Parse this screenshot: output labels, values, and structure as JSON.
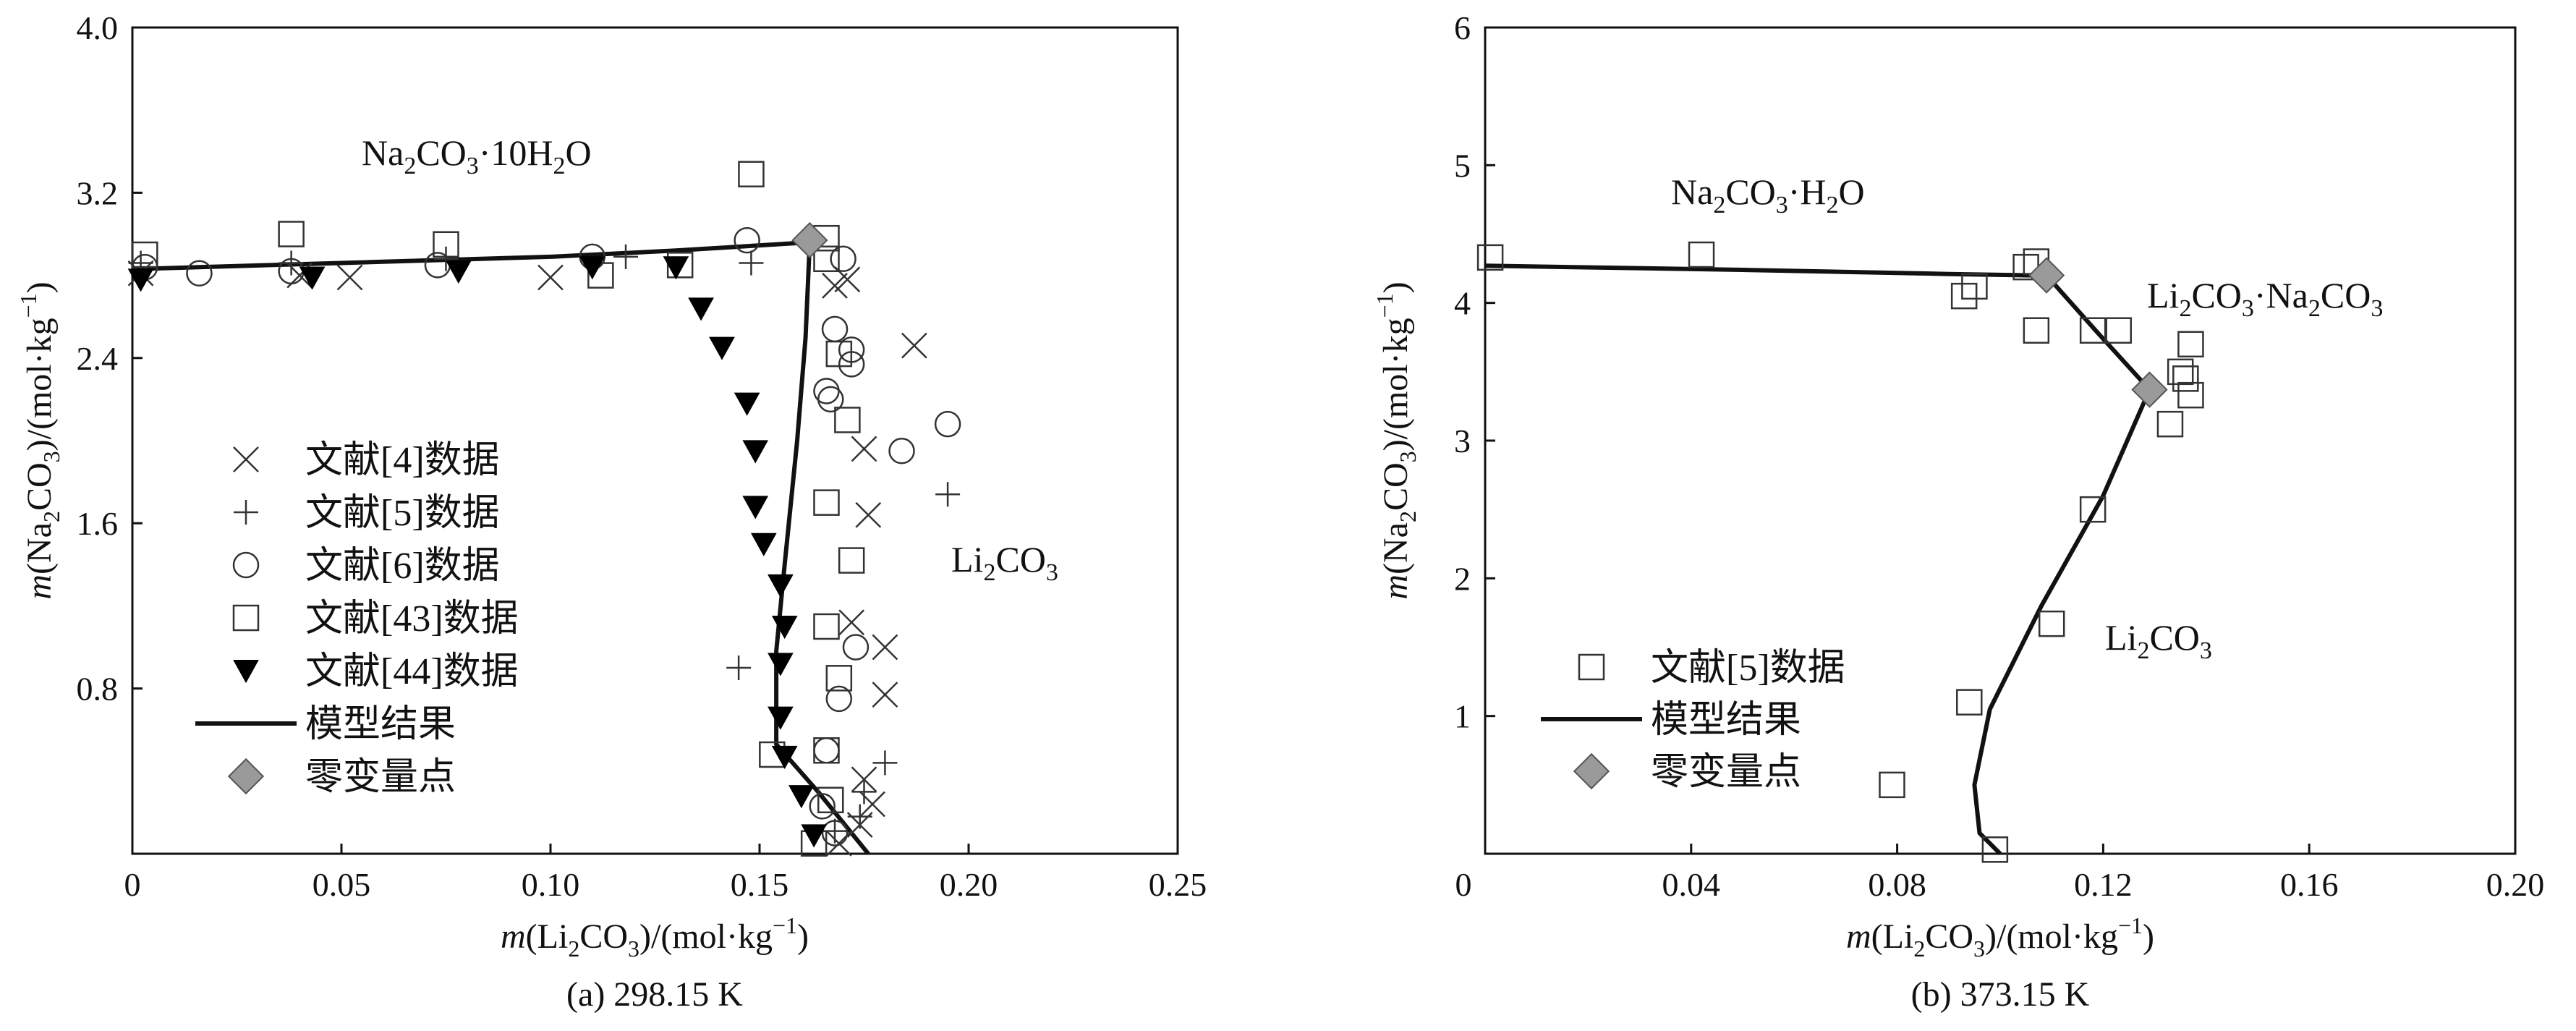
{
  "chart_data": [
    {
      "type": "scatter",
      "panel": "a",
      "caption": "(a) 298.15 K",
      "xlabel": "m(Li2CO3)/(mol·kg-1)",
      "ylabel": "m(Na2CO3)/(mol·kg-1)",
      "xlim": [
        0,
        0.25
      ],
      "ylim": [
        0,
        4.0
      ],
      "xticks": [
        0,
        0.05,
        0.1,
        0.15,
        0.2,
        0.25
      ],
      "xtick_labels": [
        "0",
        "0.05",
        "0.10",
        "0.15",
        "0.20",
        "0.25"
      ],
      "yticks": [
        0.8,
        1.6,
        2.4,
        3.2,
        4.0
      ],
      "ytick_labels": [
        "0.8",
        "1.6",
        "2.4",
        "3.2",
        "4.0"
      ],
      "grid": false,
      "legend_position": "left",
      "region_labels": [
        {
          "text": "Na2CO3·10H2O",
          "x": 0.095,
          "y": 3.34
        },
        {
          "text": "Li2CO3",
          "x": 0.21,
          "y": 1.38
        }
      ],
      "series": [
        {
          "name": "文献[4]数据",
          "marker": "x",
          "points": [
            [
              0.002,
              2.81
            ],
            [
              0.04,
              2.8
            ],
            [
              0.052,
              2.79
            ],
            [
              0.1,
              2.79
            ],
            [
              0.168,
              2.75
            ],
            [
              0.171,
              2.78
            ],
            [
              0.175,
              1.96
            ],
            [
              0.187,
              2.46
            ],
            [
              0.176,
              1.64
            ],
            [
              0.18,
              1.0
            ],
            [
              0.18,
              0.77
            ],
            [
              0.172,
              1.12
            ],
            [
              0.175,
              0.36
            ],
            [
              0.177,
              0.24
            ],
            [
              0.174,
              0.14
            ],
            [
              0.169,
              0.05
            ]
          ]
        },
        {
          "name": "文献[5]数据",
          "marker": "+",
          "points": [
            [
              0.002,
              2.86
            ],
            [
              0.038,
              2.86
            ],
            [
              0.075,
              2.88
            ],
            [
              0.118,
              2.89
            ],
            [
              0.148,
              2.86
            ],
            [
              0.195,
              1.74
            ],
            [
              0.145,
              0.9
            ],
            [
              0.18,
              0.44
            ],
            [
              0.175,
              0.3
            ],
            [
              0.174,
              0.18
            ],
            [
              0.168,
              0.11
            ]
          ]
        },
        {
          "name": "文献[6]数据",
          "marker": "o",
          "points": [
            [
              0.003,
              2.84
            ],
            [
              0.016,
              2.81
            ],
            [
              0.038,
              2.82
            ],
            [
              0.073,
              2.85
            ],
            [
              0.11,
              2.89
            ],
            [
              0.147,
              2.97
            ],
            [
              0.17,
              2.88
            ],
            [
              0.168,
              2.54
            ],
            [
              0.172,
              2.44
            ],
            [
              0.172,
              2.37
            ],
            [
              0.166,
              2.24
            ],
            [
              0.167,
              2.2
            ],
            [
              0.184,
              1.95
            ],
            [
              0.195,
              2.08
            ],
            [
              0.173,
              1.0
            ],
            [
              0.169,
              0.75
            ],
            [
              0.166,
              0.5
            ],
            [
              0.165,
              0.23
            ],
            [
              0.168,
              0.1
            ]
          ]
        },
        {
          "name": "文献[43]数据",
          "marker": "square",
          "points": [
            [
              0.003,
              2.9
            ],
            [
              0.038,
              3.0
            ],
            [
              0.075,
              2.95
            ],
            [
              0.112,
              2.8
            ],
            [
              0.131,
              2.85
            ],
            [
              0.148,
              3.29
            ],
            [
              0.166,
              2.98
            ],
            [
              0.166,
              2.88
            ],
            [
              0.169,
              2.42
            ],
            [
              0.171,
              2.1
            ],
            [
              0.166,
              1.7
            ],
            [
              0.172,
              1.42
            ],
            [
              0.166,
              1.1
            ],
            [
              0.169,
              0.85
            ],
            [
              0.153,
              0.48
            ],
            [
              0.166,
              0.5
            ],
            [
              0.167,
              0.26
            ],
            [
              0.163,
              0.05
            ]
          ]
        },
        {
          "name": "文献[44]数据",
          "marker": "triangle-down",
          "points": [
            [
              0.002,
              2.78
            ],
            [
              0.043,
              2.79
            ],
            [
              0.078,
              2.82
            ],
            [
              0.11,
              2.84
            ],
            [
              0.13,
              2.84
            ],
            [
              0.136,
              2.64
            ],
            [
              0.141,
              2.45
            ],
            [
              0.147,
              2.18
            ],
            [
              0.149,
              1.95
            ],
            [
              0.149,
              1.68
            ],
            [
              0.151,
              1.5
            ],
            [
              0.155,
              1.3
            ],
            [
              0.156,
              1.1
            ],
            [
              0.155,
              0.92
            ],
            [
              0.155,
              0.66
            ],
            [
              0.156,
              0.47
            ],
            [
              0.16,
              0.28
            ],
            [
              0.163,
              0.09
            ]
          ]
        },
        {
          "name": "模型结果",
          "marker": "line",
          "points": [
            [
              0.0,
              2.83
            ],
            [
              0.05,
              2.86
            ],
            [
              0.1,
              2.89
            ],
            [
              0.13,
              2.92
            ],
            [
              0.162,
              2.96
            ],
            [
              0.161,
              2.5
            ],
            [
              0.159,
              2.0
            ],
            [
              0.156,
              1.4
            ],
            [
              0.154,
              0.98
            ],
            [
              0.154,
              0.53
            ],
            [
              0.164,
              0.3
            ],
            [
              0.176,
              0.0
            ]
          ]
        },
        {
          "name": "零变量点",
          "marker": "diamond",
          "points": [
            [
              0.162,
              2.97
            ]
          ]
        }
      ]
    },
    {
      "type": "scatter",
      "panel": "b",
      "caption": "(b) 373.15 K",
      "xlabel": "m(Li2CO3)/(mol·kg-1)",
      "ylabel": "m(Na2CO3)/(mol·kg-1)",
      "xlim": [
        0,
        0.2
      ],
      "ylim": [
        0,
        6
      ],
      "xticks": [
        0.04,
        0.08,
        0.12,
        0.16,
        0.2
      ],
      "xtick_labels": [
        "0.04",
        "0.08",
        "0.12",
        "0.16",
        "0.20"
      ],
      "yticks": [
        0,
        1,
        2,
        3,
        4,
        5,
        6
      ],
      "ytick_labels": [
        "0",
        "1",
        "2",
        "3",
        "4",
        "5",
        "6"
      ],
      "grid": false,
      "legend_position": "bottom-left",
      "region_labels": [
        {
          "text": "Na2CO3·H2O",
          "x": 0.05,
          "y": 4.82
        },
        {
          "text": "Li2CO3·Na2CO3",
          "x": 0.152,
          "y": 4.02
        },
        {
          "text": "Li2CO3",
          "x": 0.123,
          "y": 1.78
        }
      ],
      "series": [
        {
          "name": "文献[5]数据",
          "marker": "square",
          "points": [
            [
              0.001,
              4.33
            ],
            [
              0.042,
              4.35
            ],
            [
              0.093,
              4.05
            ],
            [
              0.095,
              4.12
            ],
            [
              0.105,
              4.26
            ],
            [
              0.107,
              4.3
            ],
            [
              0.107,
              3.8
            ],
            [
              0.118,
              3.8
            ],
            [
              0.123,
              3.8
            ],
            [
              0.133,
              3.12
            ],
            [
              0.135,
              3.5
            ],
            [
              0.136,
              3.45
            ],
            [
              0.137,
              3.7
            ],
            [
              0.137,
              3.33
            ],
            [
              0.118,
              2.5
            ],
            [
              0.11,
              1.67
            ],
            [
              0.094,
              1.1
            ],
            [
              0.079,
              0.5
            ],
            [
              0.099,
              0.03
            ]
          ]
        },
        {
          "name": "模型结果",
          "marker": "line",
          "points": [
            [
              0.0,
              4.27
            ],
            [
              0.05,
              4.24
            ],
            [
              0.09,
              4.21
            ],
            [
              0.106,
              4.2
            ],
            [
              0.109,
              4.2
            ],
            [
              0.119,
              3.78
            ],
            [
              0.129,
              3.37
            ],
            [
              0.12,
              2.6
            ],
            [
              0.108,
              1.8
            ],
            [
              0.098,
              1.05
            ],
            [
              0.095,
              0.5
            ],
            [
              0.096,
              0.15
            ],
            [
              0.1,
              0.0
            ]
          ]
        },
        {
          "name": "零变量点",
          "marker": "diamond",
          "points": [
            [
              0.109,
              4.2
            ],
            [
              0.129,
              3.37
            ]
          ]
        }
      ]
    }
  ]
}
